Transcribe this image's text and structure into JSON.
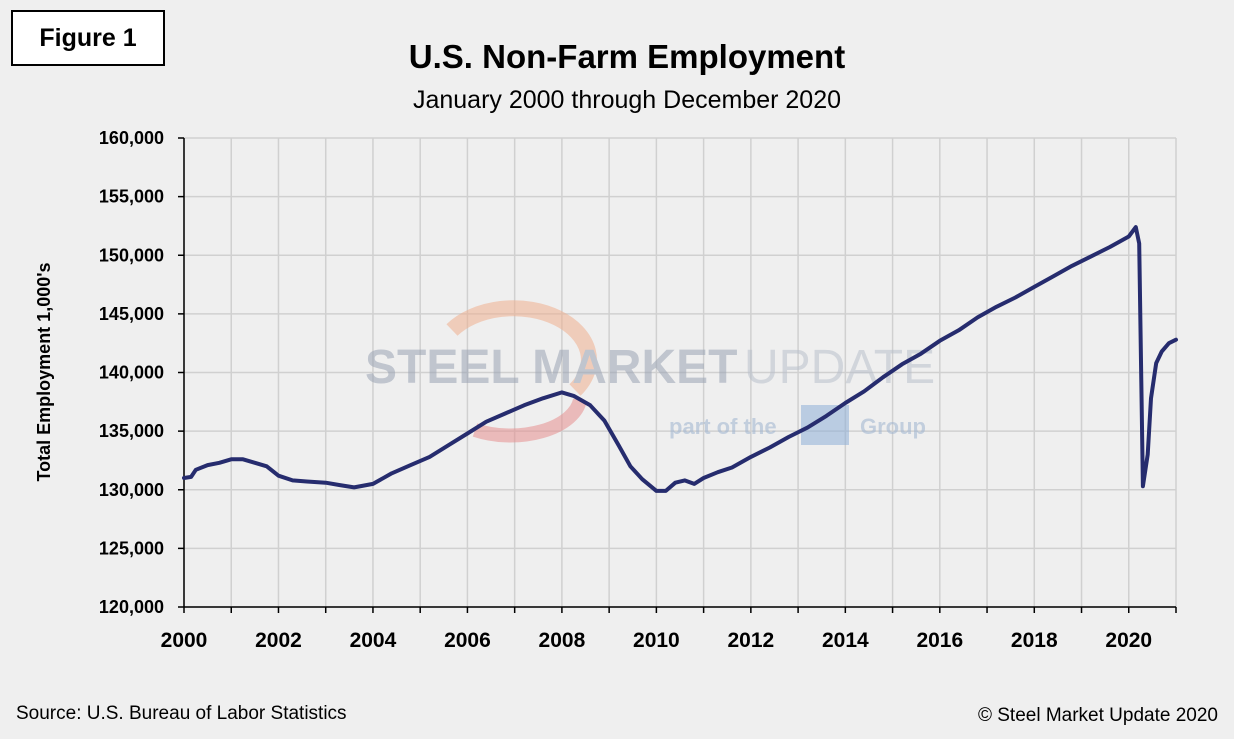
{
  "figure_label": "Figure 1",
  "title": "U.S. Non-Farm Employment",
  "subtitle": "January 2000 through December 2020",
  "source": "Source: U.S. Bureau  of Labor Statistics",
  "copyright": "© Steel Market Update 2020",
  "watermark": {
    "brand_part1": "STEEL MARKET",
    "brand_part2": "UPDATE",
    "tagline_left": "part of the",
    "tagline_right": "Group"
  },
  "colors": {
    "line": "#262c6e",
    "grid": "#d0d0d0",
    "background": "#efefef",
    "plot_bg": "#efefef"
  },
  "chart_data": {
    "type": "line",
    "title": "U.S. Non-Farm Employment",
    "subtitle": "January 2000 through December 2020",
    "xlabel": "",
    "ylabel": "Total Employment 1,000's",
    "xlim": [
      2000,
      2021
    ],
    "ylim": [
      120000,
      160000
    ],
    "x_ticks": [
      "2000",
      "2002",
      "2004",
      "2006",
      "2008",
      "2010",
      "2012",
      "2014",
      "2016",
      "2018",
      "2020"
    ],
    "y_ticks": [
      "120,000",
      "125,000",
      "130,000",
      "135,000",
      "140,000",
      "145,000",
      "150,000",
      "155,000",
      "160,000"
    ],
    "grid": true,
    "series": [
      {
        "points": [
          [
            2000.0,
            131000
          ],
          [
            2000.15,
            131100
          ],
          [
            2000.25,
            131700
          ],
          [
            2000.5,
            132100
          ],
          [
            2000.75,
            132300
          ],
          [
            2001.0,
            132600
          ],
          [
            2001.25,
            132600
          ],
          [
            2001.5,
            132300
          ],
          [
            2001.75,
            132000
          ],
          [
            2002.0,
            131200
          ],
          [
            2002.3,
            130800
          ],
          [
            2002.6,
            130700
          ],
          [
            2003.0,
            130600
          ],
          [
            2003.3,
            130400
          ],
          [
            2003.6,
            130200
          ],
          [
            2004.0,
            130500
          ],
          [
            2004.4,
            131400
          ],
          [
            2004.8,
            132100
          ],
          [
            2005.2,
            132800
          ],
          [
            2005.6,
            133800
          ],
          [
            2006.0,
            134800
          ],
          [
            2006.4,
            135800
          ],
          [
            2006.8,
            136500
          ],
          [
            2007.2,
            137200
          ],
          [
            2007.6,
            137800
          ],
          [
            2008.0,
            138300
          ],
          [
            2008.25,
            138000
          ],
          [
            2008.6,
            137200
          ],
          [
            2008.9,
            135900
          ],
          [
            2009.2,
            133800
          ],
          [
            2009.45,
            132000
          ],
          [
            2009.7,
            130900
          ],
          [
            2010.0,
            129900
          ],
          [
            2010.2,
            129900
          ],
          [
            2010.4,
            130600
          ],
          [
            2010.6,
            130800
          ],
          [
            2010.8,
            130500
          ],
          [
            2011.0,
            131000
          ],
          [
            2011.3,
            131500
          ],
          [
            2011.6,
            131900
          ],
          [
            2012.0,
            132800
          ],
          [
            2012.4,
            133600
          ],
          [
            2012.8,
            134500
          ],
          [
            2013.2,
            135300
          ],
          [
            2013.6,
            136300
          ],
          [
            2014.0,
            137400
          ],
          [
            2014.4,
            138400
          ],
          [
            2014.8,
            139600
          ],
          [
            2015.2,
            140700
          ],
          [
            2015.6,
            141600
          ],
          [
            2016.0,
            142700
          ],
          [
            2016.4,
            143600
          ],
          [
            2016.8,
            144700
          ],
          [
            2017.2,
            145600
          ],
          [
            2017.6,
            146400
          ],
          [
            2018.0,
            147300
          ],
          [
            2018.4,
            148200
          ],
          [
            2018.8,
            149100
          ],
          [
            2019.2,
            149900
          ],
          [
            2019.6,
            150700
          ],
          [
            2020.0,
            151600
          ],
          [
            2020.15,
            152400
          ],
          [
            2020.22,
            151000
          ],
          [
            2020.3,
            130300
          ],
          [
            2020.4,
            133000
          ],
          [
            2020.47,
            137800
          ],
          [
            2020.58,
            140800
          ],
          [
            2020.7,
            141800
          ],
          [
            2020.85,
            142500
          ],
          [
            2021.0,
            142800
          ]
        ]
      }
    ]
  }
}
